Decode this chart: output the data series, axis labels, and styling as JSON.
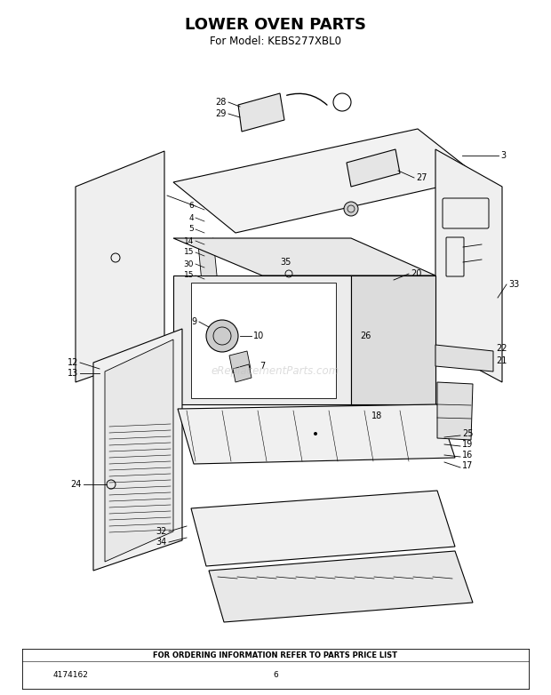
{
  "title": "LOWER OVEN PARTS",
  "subtitle": "For Model: KEBS277XBL0",
  "footer_text": "FOR ORDERING INFORMATION REFER TO PARTS PRICE LIST",
  "part_number": "4174162",
  "page_number": "6",
  "watermark": "eReplacementParts.com",
  "bg_color": "#ffffff",
  "line_color": "#000000",
  "title_fontsize": 13,
  "subtitle_fontsize": 8.5,
  "label_fontsize": 7,
  "footer_fontsize": 6
}
